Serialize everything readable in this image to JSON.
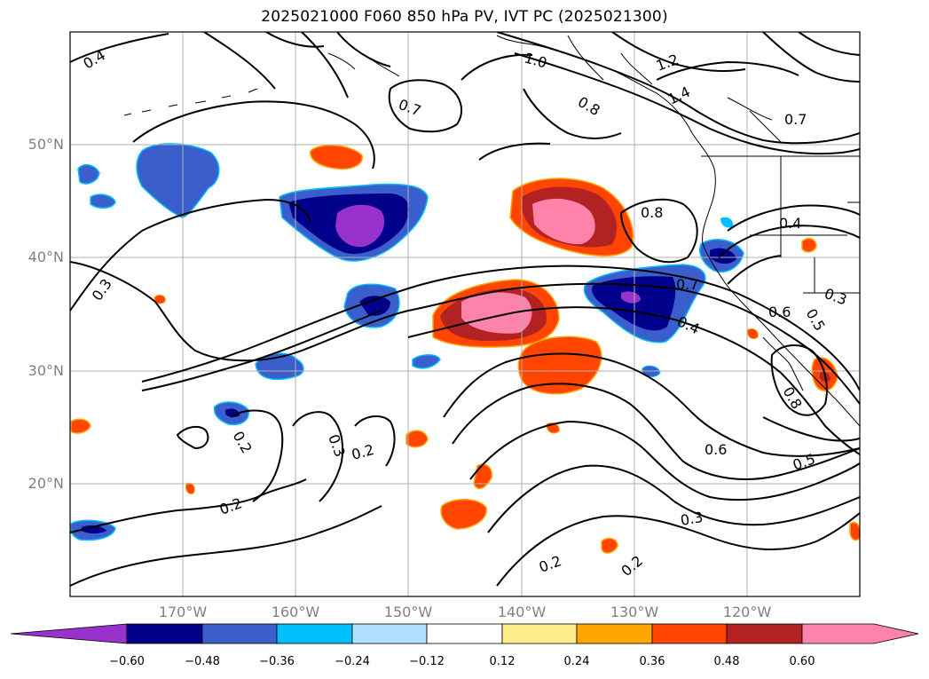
{
  "title": "2025021000 F060 850 hPa PV, IVT PC (2025021300)",
  "lat_labels": [
    "50°N",
    "40°N",
    "30°N",
    "20°N"
  ],
  "lon_labels": [
    "170°W",
    "160°W",
    "150°W",
    "140°W",
    "130°W",
    "120°W"
  ],
  "colorbar": {
    "ticks": [
      "−0.60",
      "−0.48",
      "−0.36",
      "−0.24",
      "−0.12",
      "0.12",
      "0.24",
      "0.36",
      "0.48",
      "0.60"
    ],
    "colors": [
      "#9932cc",
      "#00008b",
      "#3a5fcd",
      "#00bfff",
      "#b0e2ff",
      "#ffffff",
      "#ffec8b",
      "#ffa500",
      "#ff4500",
      "#b22222",
      "#ff82ab"
    ]
  },
  "contour_labels": [
    "0.4",
    "1.0",
    "1.2",
    "1.4",
    "0.8",
    "0.7",
    "0.7",
    "0.8",
    "0.4",
    "0.3",
    "0.3",
    "0.6",
    "0.5",
    "0.4",
    "0.7",
    "0.8",
    "0.2",
    "0.3",
    "0.2",
    "0.6",
    "0.5",
    "0.2",
    "0.3",
    "0.2",
    "0.2"
  ],
  "colors": {
    "grid": "#b0b0b0",
    "contour": "#000000",
    "coast": "#000000"
  }
}
